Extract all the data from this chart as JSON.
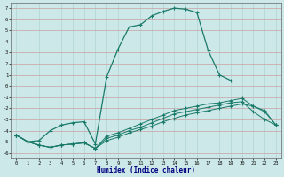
{
  "line1_x": [
    0,
    1,
    2,
    3,
    4,
    5,
    6,
    7,
    8,
    9,
    10,
    11,
    12,
    13,
    14,
    15,
    16,
    17,
    18,
    19
  ],
  "line1_y": [
    -4.4,
    -5.0,
    -4.9,
    -4.0,
    -3.5,
    -3.3,
    -3.2,
    -5.2,
    0.8,
    3.3,
    5.3,
    5.5,
    6.3,
    6.7,
    7.0,
    6.9,
    6.6,
    3.2,
    1.0,
    0.5
  ],
  "line2_x": [
    0,
    1,
    2,
    3,
    4,
    5,
    6,
    7,
    8,
    9,
    10,
    11,
    12,
    13,
    14,
    15,
    16,
    17,
    18,
    19,
    20,
    21,
    22,
    23
  ],
  "line2_y": [
    -4.4,
    -5.0,
    -5.3,
    -5.5,
    -5.3,
    -5.2,
    -5.1,
    -5.6,
    -4.5,
    -4.2,
    -3.8,
    -3.4,
    -3.0,
    -2.6,
    -2.2,
    -2.0,
    -1.8,
    -1.6,
    -1.5,
    -1.3,
    -1.1,
    -1.8,
    -2.3,
    -3.5
  ],
  "line3_x": [
    0,
    1,
    2,
    3,
    4,
    5,
    6,
    7,
    8,
    9,
    10,
    11,
    12,
    13,
    14,
    15,
    16,
    17,
    18,
    19,
    20,
    21,
    22,
    23
  ],
  "line3_y": [
    -4.4,
    -5.0,
    -5.3,
    -5.5,
    -5.3,
    -5.2,
    -5.1,
    -5.6,
    -4.7,
    -4.4,
    -4.0,
    -3.7,
    -3.3,
    -2.9,
    -2.5,
    -2.3,
    -2.1,
    -1.9,
    -1.7,
    -1.5,
    -1.4,
    -2.3,
    -3.0,
    -3.5
  ],
  "line4_x": [
    0,
    1,
    2,
    3,
    4,
    5,
    6,
    7,
    8,
    9,
    10,
    11,
    12,
    13,
    14,
    15,
    16,
    17,
    18,
    19,
    20,
    21,
    22,
    23
  ],
  "line4_y": [
    -4.4,
    -5.0,
    -5.3,
    -5.5,
    -5.3,
    -5.2,
    -5.1,
    -5.6,
    -4.9,
    -4.6,
    -4.2,
    -3.9,
    -3.6,
    -3.2,
    -2.9,
    -2.6,
    -2.4,
    -2.2,
    -2.0,
    -1.8,
    -1.6,
    -1.8,
    -2.2,
    -3.5
  ],
  "color": "#1a7a6a",
  "bg_color": "#cce8e8",
  "grid_color_h": "#c8a0a0",
  "grid_color_v": "#b0d4d4",
  "xlabel": "Humidex (Indice chaleur)",
  "xlim": [
    -0.5,
    23.5
  ],
  "ylim": [
    -6.5,
    7.5
  ],
  "xticks": [
    0,
    1,
    2,
    3,
    4,
    5,
    6,
    7,
    8,
    9,
    10,
    11,
    12,
    13,
    14,
    15,
    16,
    17,
    18,
    19,
    20,
    21,
    22,
    23
  ],
  "yticks": [
    -6,
    -5,
    -4,
    -3,
    -2,
    -1,
    0,
    1,
    2,
    3,
    4,
    5,
    6,
    7
  ]
}
